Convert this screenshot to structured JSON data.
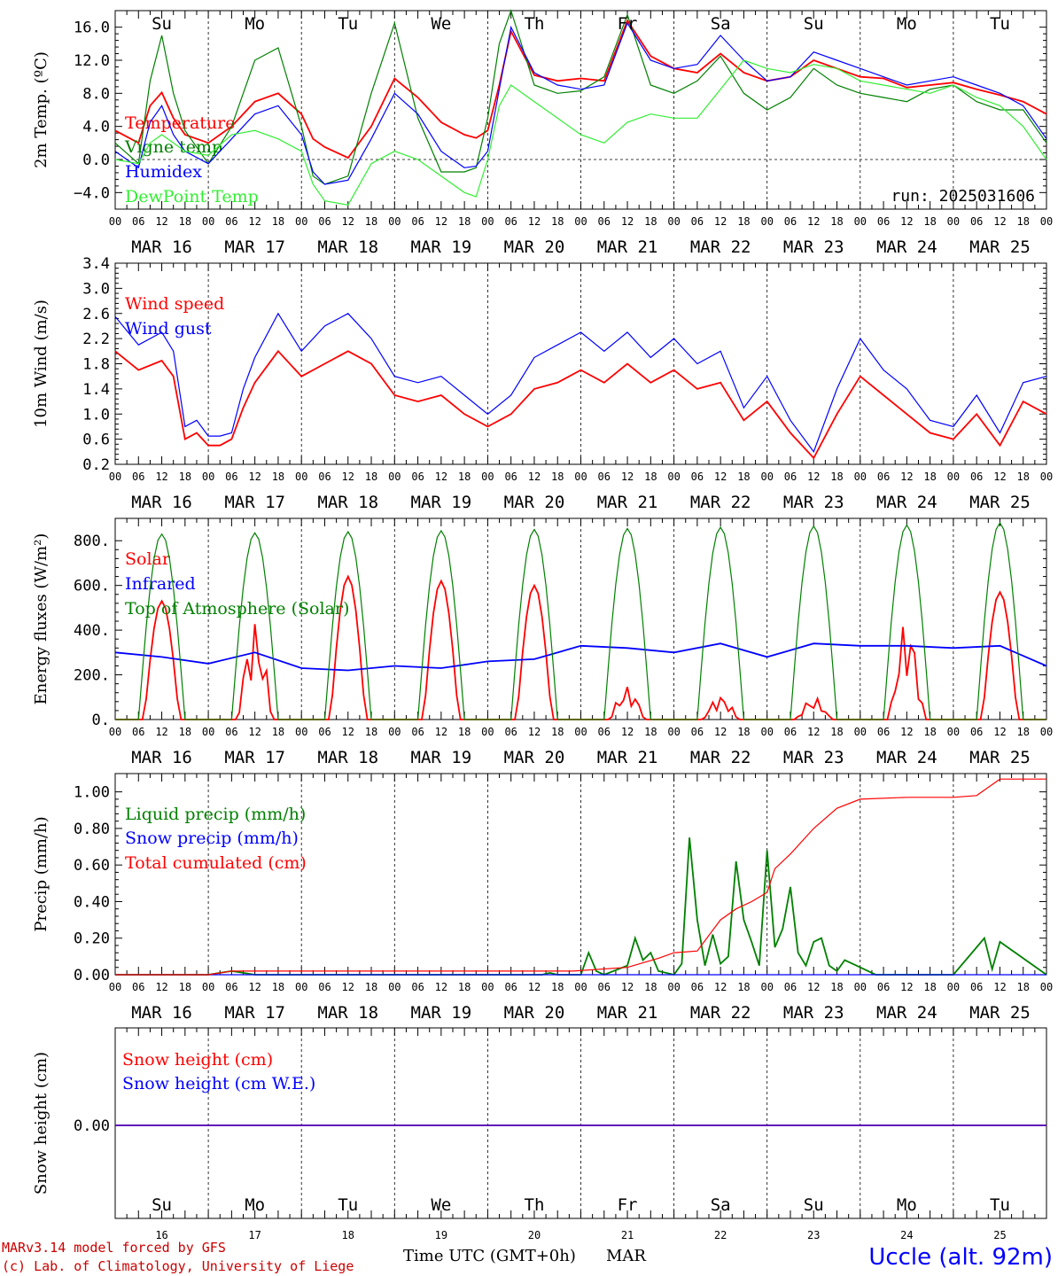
{
  "chart_data": [
    {
      "type": "line",
      "ylabel": "2m Temp. (ºC)",
      "ylim": [
        -6,
        18
      ],
      "yticks": [
        "16.0",
        "12.0",
        "8.0",
        "4.0",
        "0.0",
        "−4.0"
      ],
      "ytick_values": [
        16,
        12,
        8,
        4,
        0,
        -4
      ],
      "zero_line": true,
      "annotation": "run: 2025031606",
      "x_hours_total": 240,
      "series": [
        {
          "name": "Temperature",
          "color": "#ff0000",
          "x": [
            0,
            6,
            9,
            12,
            15,
            18,
            24,
            30,
            36,
            42,
            48,
            51,
            54,
            60,
            66,
            72,
            78,
            84,
            90,
            93,
            96,
            99,
            102,
            108,
            114,
            120,
            126,
            132,
            138,
            144,
            150,
            156,
            162,
            168,
            174,
            180,
            186,
            192,
            198,
            204,
            210,
            216,
            222,
            228,
            234,
            240
          ],
          "y": [
            3.5,
            2.0,
            6.5,
            8.1,
            5.0,
            3.0,
            2.0,
            4.0,
            7.0,
            8.0,
            5.5,
            2.5,
            1.5,
            0.2,
            4.0,
            9.8,
            7.5,
            4.5,
            3.0,
            2.6,
            3.5,
            9.0,
            15.5,
            10.2,
            9.5,
            9.8,
            9.5,
            16.8,
            12.5,
            11.0,
            10.5,
            12.8,
            10.5,
            9.5,
            10.0,
            12.0,
            11.0,
            10.0,
            9.8,
            8.7,
            9.0,
            9.3,
            8.5,
            7.8,
            7.0,
            5.5
          ]
        },
        {
          "name": "Vigne temp",
          "color": "#008000",
          "x": [
            0,
            6,
            9,
            12,
            15,
            18,
            24,
            30,
            36,
            42,
            48,
            51,
            54,
            60,
            66,
            72,
            78,
            84,
            90,
            93,
            96,
            99,
            102,
            108,
            114,
            120,
            126,
            132,
            138,
            144,
            150,
            156,
            162,
            168,
            174,
            180,
            186,
            192,
            198,
            204,
            210,
            216,
            222,
            228,
            234,
            240
          ],
          "y": [
            2.0,
            -0.5,
            9.5,
            15.0,
            8.0,
            3.5,
            -0.5,
            4.0,
            12.0,
            13.5,
            4.0,
            -2.0,
            -3.0,
            -2.0,
            8.0,
            16.5,
            5.0,
            -1.5,
            -1.5,
            -1.0,
            5.0,
            14.0,
            18.0,
            9.0,
            8.0,
            8.3,
            10.0,
            17.5,
            9.0,
            8.0,
            9.5,
            12.5,
            8.0,
            6.0,
            7.5,
            11.0,
            9.0,
            8.0,
            7.5,
            7.0,
            8.5,
            9.0,
            7.0,
            6.0,
            6.0,
            2.0
          ]
        },
        {
          "name": "Humidex",
          "color": "#0000ff",
          "x": [
            0,
            6,
            9,
            12,
            15,
            18,
            24,
            30,
            36,
            42,
            48,
            51,
            54,
            60,
            66,
            72,
            78,
            84,
            90,
            93,
            96,
            99,
            102,
            108,
            114,
            120,
            126,
            132,
            138,
            144,
            150,
            156,
            162,
            168,
            174,
            180,
            186,
            192,
            198,
            204,
            210,
            216,
            222,
            228,
            234,
            240
          ],
          "y": [
            1.0,
            -1.0,
            4.5,
            6.5,
            3.0,
            1.0,
            -0.5,
            2.5,
            5.5,
            6.5,
            3.0,
            -1.5,
            -3.0,
            -2.5,
            2.5,
            8.0,
            5.5,
            1.0,
            -1.0,
            -0.8,
            1.0,
            8.5,
            16.0,
            10.5,
            9.0,
            8.5,
            9.0,
            16.5,
            12.0,
            11.0,
            11.5,
            15.0,
            12.0,
            9.5,
            10.0,
            13.0,
            12.0,
            11.0,
            10.0,
            9.0,
            9.5,
            10.0,
            9.0,
            8.0,
            6.5,
            2.5
          ]
        },
        {
          "name": "DewPoint Temp",
          "color": "#33ee33",
          "x": [
            0,
            6,
            9,
            12,
            15,
            18,
            24,
            30,
            36,
            42,
            48,
            51,
            54,
            60,
            66,
            72,
            78,
            84,
            90,
            93,
            96,
            99,
            102,
            108,
            114,
            120,
            126,
            132,
            138,
            144,
            150,
            156,
            162,
            168,
            174,
            180,
            186,
            192,
            198,
            204,
            210,
            216,
            222,
            228,
            234,
            240
          ],
          "y": [
            0.0,
            -0.5,
            2.0,
            3.0,
            2.0,
            1.0,
            0.5,
            3.0,
            3.5,
            2.5,
            1.0,
            -3.0,
            -5.0,
            -5.5,
            -0.5,
            1.0,
            0.0,
            -2.0,
            -4.0,
            -4.5,
            0.0,
            6.5,
            9.0,
            7.0,
            5.0,
            3.0,
            2.0,
            4.5,
            5.5,
            5.0,
            5.0,
            8.5,
            12.0,
            11.0,
            10.5,
            11.5,
            11.0,
            9.5,
            9.0,
            8.5,
            8.0,
            9.0,
            7.5,
            6.5,
            4.0,
            0.0
          ]
        }
      ]
    },
    {
      "type": "line",
      "ylabel": "10m Wind (m/s)",
      "ylim": [
        0.2,
        3.4
      ],
      "yticks": [
        "3.4",
        "3.0",
        "2.6",
        "2.2",
        "1.8",
        "1.4",
        "1.0",
        "0.6",
        "0.2"
      ],
      "ytick_values": [
        3.4,
        3.0,
        2.6,
        2.2,
        1.8,
        1.4,
        1.0,
        0.6,
        0.2
      ],
      "x_hours_total": 240,
      "series": [
        {
          "name": "Wind speed",
          "color": "#ff0000",
          "x": [
            0,
            6,
            12,
            15,
            18,
            21,
            24,
            27,
            30,
            33,
            36,
            42,
            48,
            54,
            60,
            66,
            72,
            78,
            84,
            90,
            96,
            102,
            108,
            114,
            120,
            126,
            132,
            138,
            144,
            150,
            156,
            162,
            168,
            174,
            180,
            186,
            192,
            198,
            204,
            210,
            216,
            222,
            228,
            234,
            240
          ],
          "y": [
            2.0,
            1.7,
            1.85,
            1.6,
            0.6,
            0.7,
            0.5,
            0.5,
            0.6,
            1.1,
            1.5,
            2.0,
            1.6,
            1.8,
            2.0,
            1.8,
            1.3,
            1.2,
            1.3,
            1.0,
            0.8,
            1.0,
            1.4,
            1.5,
            1.7,
            1.5,
            1.8,
            1.5,
            1.7,
            1.4,
            1.5,
            0.9,
            1.2,
            0.7,
            0.3,
            1.0,
            1.6,
            1.3,
            1.0,
            0.7,
            0.6,
            1.0,
            0.5,
            1.2,
            1.0
          ]
        },
        {
          "name": "Wind gust",
          "color": "#0000ff",
          "x": [
            0,
            6,
            12,
            15,
            18,
            21,
            24,
            27,
            30,
            33,
            36,
            42,
            48,
            54,
            60,
            66,
            72,
            78,
            84,
            90,
            96,
            102,
            108,
            114,
            120,
            126,
            132,
            138,
            144,
            150,
            156,
            162,
            168,
            174,
            180,
            186,
            192,
            198,
            204,
            210,
            216,
            222,
            228,
            234,
            240
          ],
          "y": [
            2.55,
            2.1,
            2.3,
            2.0,
            0.8,
            0.9,
            0.65,
            0.65,
            0.7,
            1.4,
            1.9,
            2.6,
            2.0,
            2.4,
            2.6,
            2.2,
            1.6,
            1.5,
            1.6,
            1.3,
            1.0,
            1.3,
            1.9,
            2.1,
            2.3,
            2.0,
            2.3,
            1.9,
            2.2,
            1.8,
            2.0,
            1.1,
            1.6,
            0.9,
            0.4,
            1.4,
            2.2,
            1.7,
            1.4,
            0.9,
            0.8,
            1.3,
            0.7,
            1.5,
            1.6
          ]
        }
      ]
    },
    {
      "type": "line",
      "ylabel": "Energy fluxes (W/m²)",
      "ylim": [
        0,
        900
      ],
      "yticks": [
        "800.",
        "600.",
        "400.",
        "200.",
        "0."
      ],
      "ytick_values": [
        800,
        600,
        400,
        200,
        0
      ],
      "x_hours_total": 240,
      "series": [
        {
          "name": "Solar",
          "color": "#ff0000",
          "day_peaks": [
            530,
            440,
            640,
            620,
            600,
            150,
            110,
            100,
            450,
            570
          ]
        },
        {
          "name": "Infrared",
          "color": "#0000ff",
          "x": [
            0,
            12,
            24,
            36,
            48,
            60,
            72,
            84,
            96,
            108,
            120,
            132,
            144,
            156,
            168,
            180,
            192,
            204,
            216,
            228,
            240
          ],
          "y": [
            300,
            280,
            250,
            300,
            230,
            220,
            240,
            230,
            260,
            270,
            330,
            320,
            300,
            340,
            280,
            340,
            330,
            330,
            320,
            330,
            240
          ]
        },
        {
          "name": "Top of Atmosphere (Solar)",
          "color": "#008000",
          "day_peaks": [
            830,
            835,
            840,
            845,
            850,
            855,
            860,
            865,
            870,
            880
          ]
        }
      ]
    },
    {
      "type": "line",
      "ylabel": "Precip (mm/h)",
      "ylim": [
        0,
        1.1
      ],
      "yticks": [
        "1.00",
        "0.80",
        "0.60",
        "0.40",
        "0.20",
        "0.00"
      ],
      "ytick_values": [
        1.0,
        0.8,
        0.6,
        0.4,
        0.2,
        0.0
      ],
      "x_hours_total": 240,
      "series": [
        {
          "name": "Liquid precip (mm/h)",
          "color": "#008000",
          "x": [
            0,
            24,
            27,
            30,
            33,
            36,
            48,
            96,
            110,
            112,
            114,
            120,
            122,
            124,
            126,
            132,
            134,
            136,
            138,
            140,
            144,
            146,
            148,
            150,
            152,
            154,
            156,
            158,
            160,
            162,
            164,
            166,
            168,
            170,
            172,
            174,
            176,
            178,
            180,
            182,
            184,
            186,
            188,
            190,
            192,
            196,
            200,
            204,
            208,
            216,
            222,
            224,
            226,
            228,
            240
          ],
          "y": [
            0,
            0,
            0.01,
            0.02,
            0.01,
            0,
            0,
            0,
            0,
            0.01,
            0,
            0,
            0.12,
            0.02,
            0,
            0.05,
            0.2,
            0.08,
            0.12,
            0.02,
            0,
            0.06,
            0.75,
            0.3,
            0.05,
            0.22,
            0.06,
            0.1,
            0.62,
            0.3,
            0.18,
            0.05,
            0.68,
            0.15,
            0.25,
            0.48,
            0.12,
            0.05,
            0.18,
            0.2,
            0.05,
            0.02,
            0.08,
            0.06,
            0.04,
            0,
            0,
            0,
            0,
            0,
            0.15,
            0.2,
            0.03,
            0.18,
            0
          ]
        },
        {
          "name": "Snow precip (mm/h)",
          "color": "#0000ff",
          "x": [
            0,
            240
          ],
          "y": [
            0,
            0
          ]
        },
        {
          "name": "Total cumulated (cm)",
          "color": "#ff0000",
          "x": [
            0,
            24,
            30,
            48,
            96,
            118,
            132,
            140,
            144,
            150,
            156,
            160,
            164,
            168,
            170,
            174,
            180,
            186,
            192,
            204,
            216,
            222,
            228,
            240
          ],
          "y": [
            0,
            0,
            0.02,
            0.02,
            0.02,
            0.02,
            0.04,
            0.09,
            0.12,
            0.13,
            0.3,
            0.36,
            0.4,
            0.45,
            0.58,
            0.66,
            0.8,
            0.91,
            0.96,
            0.97,
            0.97,
            0.98,
            1.07,
            1.07
          ]
        }
      ]
    },
    {
      "type": "line",
      "ylabel": "Snow height (cm)",
      "yticks": [
        "0.00"
      ],
      "ytick_values": [
        0
      ],
      "x_hours_total": 240,
      "series": [
        {
          "name": "Snow height (cm)",
          "color": "#ff0000",
          "x": [
            0,
            240
          ],
          "y": [
            0,
            0
          ]
        },
        {
          "name": "Snow height (cm W.E.)",
          "color": "#0000ff",
          "x": [
            0,
            240
          ],
          "y": [
            0,
            0
          ]
        }
      ]
    }
  ],
  "x_axis": {
    "hour_ticks": [
      "00",
      "06",
      "12",
      "18"
    ],
    "dates": [
      "MAR 16",
      "MAR 17",
      "MAR 18",
      "MAR 19",
      "MAR 20",
      "MAR 21",
      "MAR 22",
      "MAR 23",
      "MAR 24",
      "MAR 25"
    ],
    "end_tick": "00",
    "weekdays": [
      "Su",
      "Mo",
      "Tu",
      "We",
      "Th",
      "Fr",
      "Sa",
      "Su",
      "Mo",
      "Tu"
    ],
    "weekday_colors": [
      "#ff0000",
      "#000000",
      "#000000",
      "#000000",
      "#000000",
      "#000000",
      "#ff0000",
      "#ff0000",
      "#000000",
      "#000000"
    ],
    "day_numbers": [
      "16",
      "17",
      "18",
      "19",
      "20",
      "21",
      "22",
      "23",
      "24",
      "25"
    ],
    "xlabel": "Time UTC (GMT+0h)",
    "month": "MAR"
  },
  "footer": {
    "line1": "MARv3.14 model forced by GFS",
    "line2": "(c) Lab. of Climatology, University of Liege",
    "station": "Uccle (alt. 92m)",
    "station_color": "#0000ff"
  }
}
